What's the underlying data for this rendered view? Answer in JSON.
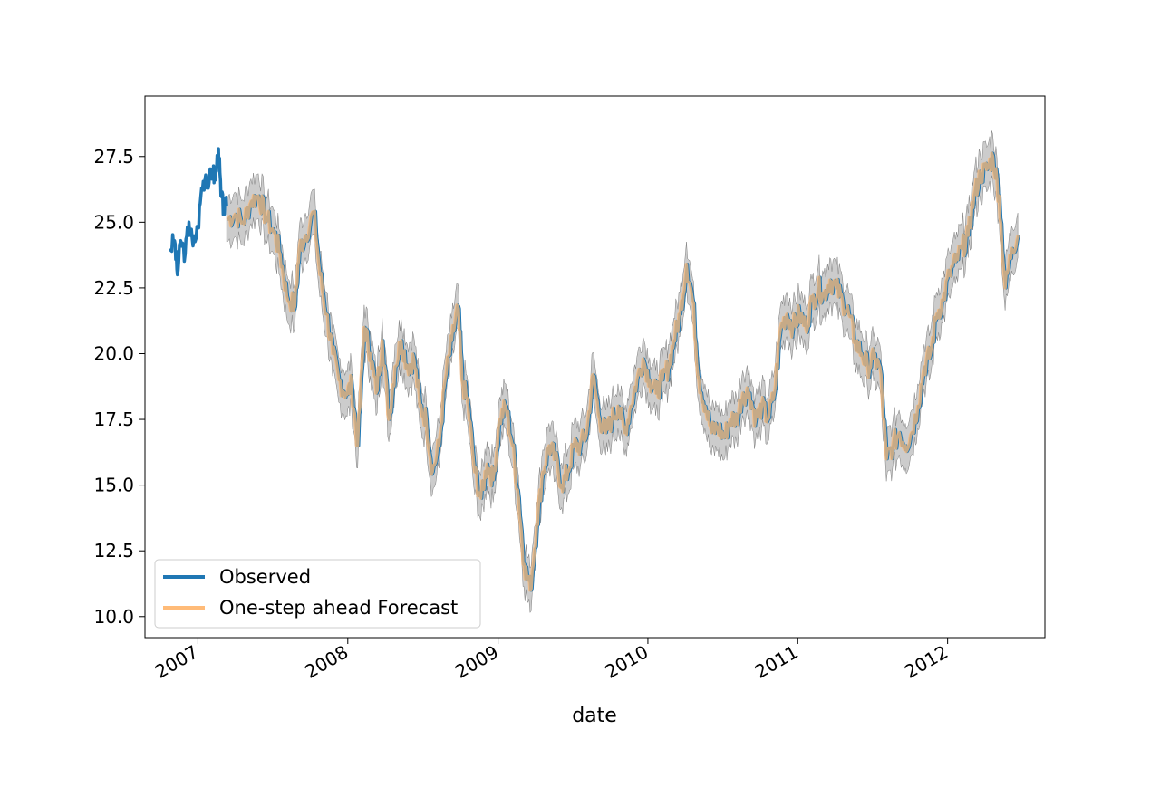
{
  "chart_data": {
    "type": "line",
    "title": "",
    "xlabel": "date",
    "ylabel": "",
    "x_range": [
      "2006-08-25",
      "2012-08-25"
    ],
    "ylim": [
      9.2,
      29.8
    ],
    "x_tick_labels": [
      "2007",
      "2008",
      "2009",
      "2010",
      "2011",
      "2012"
    ],
    "y_tick_labels": [
      "10.0",
      "12.5",
      "15.0",
      "17.5",
      "20.0",
      "22.5",
      "25.0",
      "27.5"
    ],
    "grid": false,
    "legend_position": "lower-left",
    "confidence_interval_color": "#7f7f7f",
    "series": [
      {
        "name": "Observed",
        "color": "#1f77b4",
        "x": [
          "2006-10-25",
          "2006-11-05",
          "2006-11-12",
          "2006-11-20",
          "2006-12-01",
          "2006-12-10",
          "2006-12-20",
          "2007-01-01",
          "2007-01-10",
          "2007-01-20",
          "2007-01-28",
          "2007-02-05",
          "2007-02-12",
          "2007-02-20",
          "2007-02-26",
          "2007-03-05",
          "2007-03-12"
        ],
        "y": [
          24.0,
          24.3,
          23.0,
          24.3,
          23.8,
          25.0,
          24.1,
          24.8,
          26.3,
          26.8,
          26.5,
          27.0,
          26.6,
          27.8,
          26.0,
          25.5,
          25.6
        ]
      },
      {
        "name": "One-step ahead Forecast",
        "color": "#ffbb78",
        "x": [
          "2007-03-12",
          "2007-04-01",
          "2007-04-20",
          "2007-05-10",
          "2007-05-28",
          "2007-06-15",
          "2007-07-05",
          "2007-07-20",
          "2007-08-05",
          "2007-08-25",
          "2007-09-05",
          "2007-09-20",
          "2007-10-10",
          "2007-10-25",
          "2007-11-10",
          "2007-11-25",
          "2007-12-10",
          "2007-12-28",
          "2008-01-10",
          "2008-01-25",
          "2008-02-10",
          "2008-02-25",
          "2008-03-10",
          "2008-03-25",
          "2008-04-10",
          "2008-04-25",
          "2008-05-10",
          "2008-05-25",
          "2008-06-10",
          "2008-06-25",
          "2008-07-10",
          "2008-07-25",
          "2008-08-10",
          "2008-08-25",
          "2008-09-10",
          "2008-09-25",
          "2008-10-05",
          "2008-10-20",
          "2008-11-05",
          "2008-11-20",
          "2008-12-05",
          "2008-12-20",
          "2009-01-05",
          "2009-01-20",
          "2009-02-05",
          "2009-02-20",
          "2009-03-05",
          "2009-03-20",
          "2009-04-05",
          "2009-04-20",
          "2009-05-05",
          "2009-05-20",
          "2009-06-05",
          "2009-06-20",
          "2009-07-05",
          "2009-07-20",
          "2009-08-05",
          "2009-08-20",
          "2009-09-05",
          "2009-09-20",
          "2009-10-05",
          "2009-10-20",
          "2009-11-05",
          "2009-11-20",
          "2009-12-05",
          "2009-12-20",
          "2010-01-05",
          "2010-01-20",
          "2010-02-05",
          "2010-02-20",
          "2010-03-05",
          "2010-03-20",
          "2010-04-05",
          "2010-04-20",
          "2010-05-05",
          "2010-05-20",
          "2010-06-05",
          "2010-06-20",
          "2010-07-05",
          "2010-07-20",
          "2010-08-05",
          "2010-08-20",
          "2010-09-05",
          "2010-09-20",
          "2010-10-05",
          "2010-10-20",
          "2010-11-05",
          "2010-11-20",
          "2010-12-05",
          "2010-12-20",
          "2011-01-05",
          "2011-01-20",
          "2011-02-05",
          "2011-02-20",
          "2011-03-05",
          "2011-03-20",
          "2011-04-05",
          "2011-04-20",
          "2011-05-05",
          "2011-05-20",
          "2011-06-05",
          "2011-06-20",
          "2011-07-05",
          "2011-07-20",
          "2011-08-05",
          "2011-08-20",
          "2011-09-05",
          "2011-09-20",
          "2011-10-05",
          "2011-10-20",
          "2011-11-05",
          "2011-11-20",
          "2011-12-05",
          "2011-12-20",
          "2012-01-05",
          "2012-01-20",
          "2012-02-05",
          "2012-02-20",
          "2012-03-05",
          "2012-03-20",
          "2012-04-05",
          "2012-04-20",
          "2012-05-05",
          "2012-05-20",
          "2012-06-05",
          "2012-06-20"
        ],
        "y": [
          25.1,
          25.3,
          25.0,
          25.8,
          26.0,
          25.2,
          24.6,
          23.8,
          22.2,
          21.8,
          24.0,
          24.5,
          25.4,
          23.0,
          21.5,
          20.0,
          19.0,
          18.5,
          18.8,
          16.5,
          21.0,
          20.0,
          18.5,
          20.5,
          17.5,
          19.5,
          20.5,
          19.5,
          19.8,
          18.0,
          17.5,
          15.5,
          16.5,
          19.0,
          20.5,
          21.8,
          19.0,
          18.0,
          15.5,
          14.5,
          15.8,
          15.2,
          17.5,
          18.0,
          16.5,
          14.5,
          12.0,
          11.0,
          13.5,
          15.5,
          16.5,
          16.0,
          15.0,
          15.5,
          16.5,
          16.5,
          17.0,
          19.2,
          17.5,
          17.0,
          17.5,
          18.0,
          17.0,
          18.0,
          19.0,
          19.8,
          19.0,
          18.5,
          19.0,
          19.5,
          20.5,
          21.5,
          23.4,
          22.0,
          19.0,
          18.0,
          17.0,
          17.2,
          16.8,
          17.5,
          17.5,
          18.5,
          18.5,
          17.5,
          18.0,
          17.5,
          18.5,
          21.0,
          21.5,
          21.0,
          21.5,
          21.0,
          22.0,
          22.5,
          22.2,
          22.8,
          22.5,
          22.0,
          21.5,
          20.5,
          20.0,
          19.5,
          19.8,
          19.5,
          16.0,
          16.5,
          17.0,
          16.5,
          17.0,
          18.0,
          19.5,
          20.0,
          21.5,
          22.0,
          23.0,
          23.5,
          24.0,
          24.5,
          26.0,
          26.8,
          27.0,
          27.5,
          26.0,
          22.5,
          24.0,
          24.5
        ]
      }
    ]
  }
}
